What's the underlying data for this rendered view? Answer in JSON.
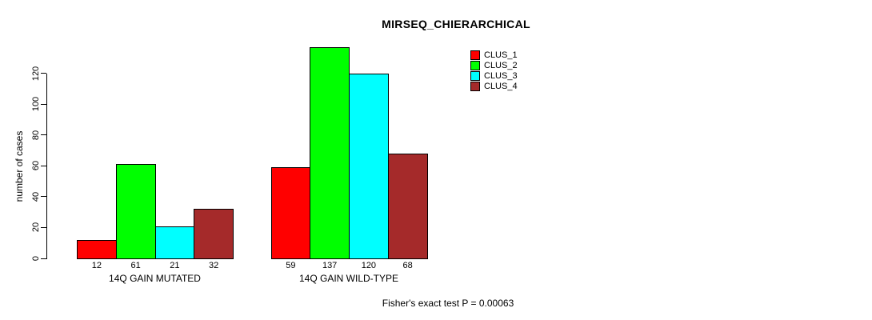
{
  "chart_data": {
    "type": "bar",
    "title": "MIRSEQ_CHIERARCHICAL",
    "ylabel": "number of cases",
    "xlabel": "",
    "annotation": "Fisher's exact test P = 0.00063",
    "categories": [
      "14Q GAIN MUTATED",
      "14Q GAIN WILD-TYPE"
    ],
    "series": [
      {
        "name": "CLUS_1",
        "color": "#ff0000",
        "values": [
          12,
          59
        ]
      },
      {
        "name": "CLUS_2",
        "color": "#00ff00",
        "values": [
          61,
          137
        ]
      },
      {
        "name": "CLUS_3",
        "color": "#00ffff",
        "values": [
          21,
          120
        ]
      },
      {
        "name": "CLUS_4",
        "color": "#a52a2a",
        "values": [
          32,
          68
        ]
      }
    ],
    "show_bar_values": true,
    "yticks": [
      0,
      20,
      40,
      60,
      80,
      100,
      120
    ],
    "ylim": [
      0,
      137
    ],
    "grid": false,
    "legend_position": "top-right",
    "legend_entries": [
      "CLUS_1",
      "CLUS_2",
      "CLUS_3",
      "CLUS_4"
    ],
    "axis_color": "#000000",
    "text_color": "#000000",
    "background_color": "#ffffff"
  }
}
